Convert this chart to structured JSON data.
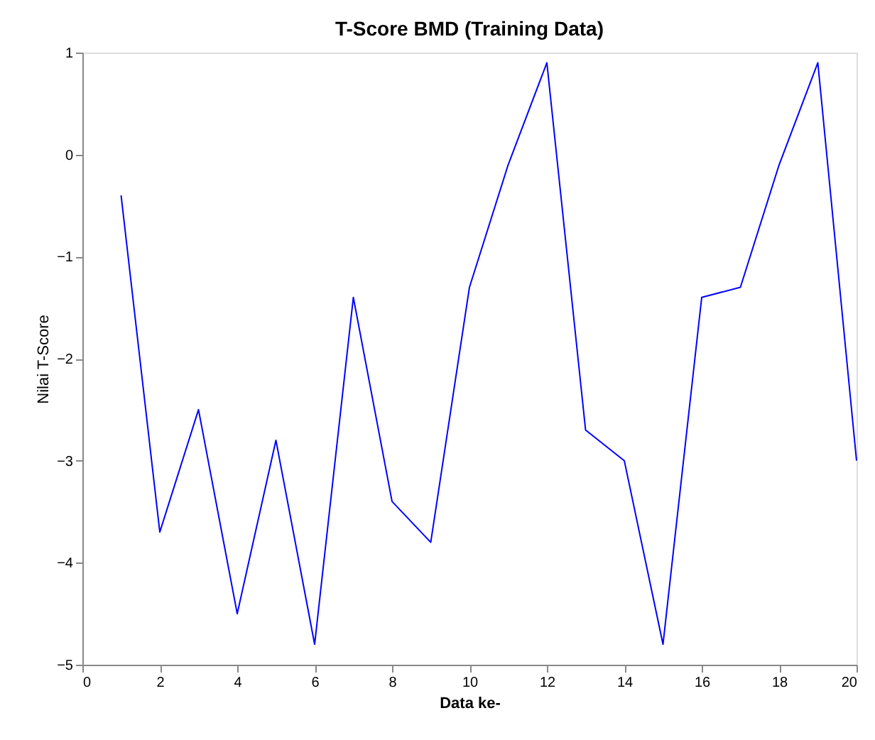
{
  "chart_data": {
    "type": "line",
    "title": "T-Score BMD (Training Data)",
    "xlabel": "Data ke-",
    "ylabel": "Nilai T-Score",
    "x": [
      1,
      2,
      3,
      4,
      5,
      6,
      7,
      8,
      9,
      10,
      11,
      12,
      13,
      14,
      15,
      16,
      17,
      18,
      19,
      20
    ],
    "series": [
      {
        "color": "#0000ff",
        "values": [
          -0.4,
          -3.7,
          -2.5,
          -4.5,
          -2.8,
          -4.8,
          -1.4,
          -3.4,
          -3.8,
          -1.3,
          -0.1,
          0.9,
          -2.7,
          -3.0,
          -4.8,
          -1.4,
          -1.3,
          -0.1,
          0.9,
          -3.0
        ]
      }
    ],
    "xlim": [
      0,
      20
    ],
    "xticks": [
      0,
      2,
      4,
      6,
      8,
      10,
      12,
      14,
      16,
      18,
      20
    ],
    "ylim": [
      -5,
      1
    ],
    "yticks": [
      -5,
      -4,
      -3,
      -2,
      -1,
      0,
      1
    ],
    "grid": false,
    "marker": "none",
    "line_style": "solid"
  }
}
